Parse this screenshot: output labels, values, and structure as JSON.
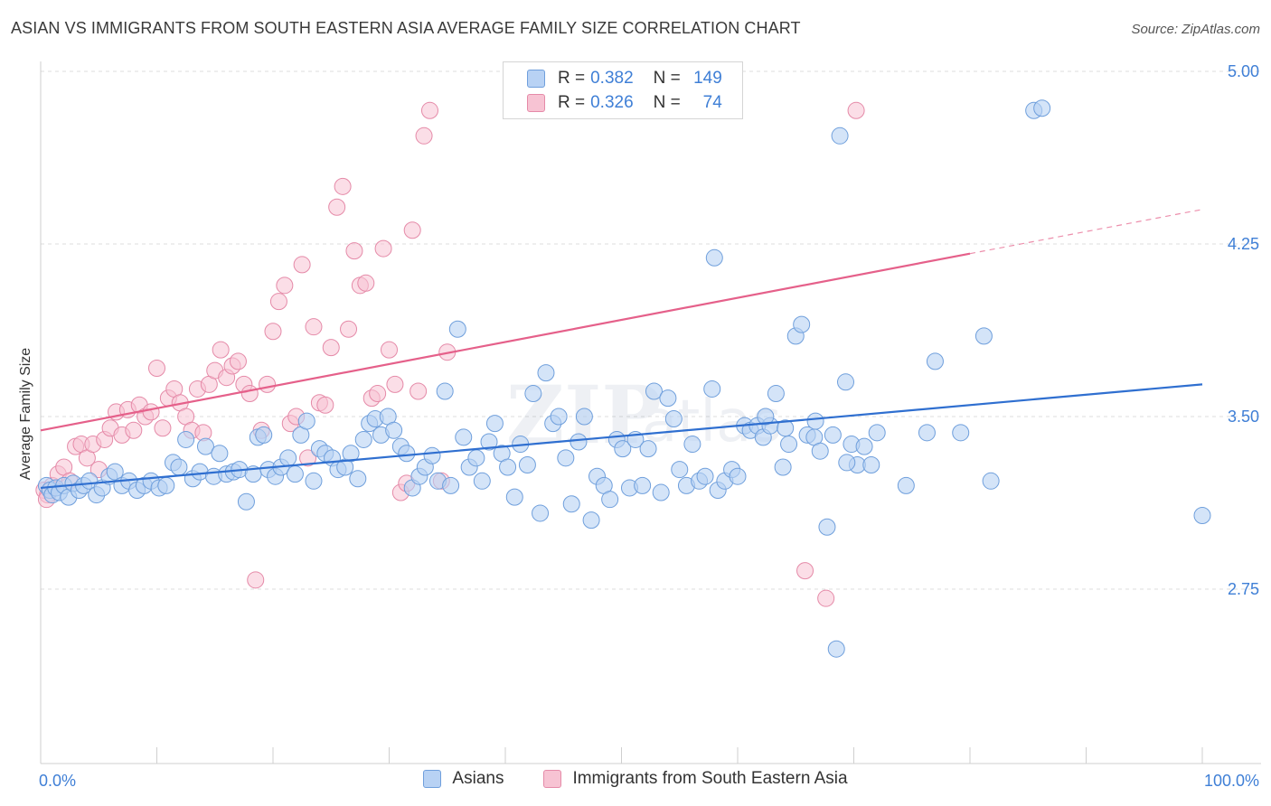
{
  "header": {
    "title": "ASIAN VS IMMIGRANTS FROM SOUTH EASTERN ASIA AVERAGE FAMILY SIZE CORRELATION CHART",
    "source": "Source: ZipAtlas.com"
  },
  "colors": {
    "blue_fill": "#b8d2f4",
    "blue_stroke": "#6f9fdc",
    "blue_line": "#2f6fd0",
    "pink_fill": "#f7c3d3",
    "pink_stroke": "#e58aa8",
    "pink_line": "#e5608a",
    "grid": "#dcdcdc",
    "tick_text": "#3f7fd6"
  },
  "legend": {
    "rows": [
      {
        "r_label": "R =",
        "r_value": "0.382",
        "n_label": "N =",
        "n_value": "149"
      },
      {
        "r_label": "R =",
        "r_value": "0.326",
        "n_label": "N =",
        "n_value": "74"
      }
    ]
  },
  "bottom_legend": [
    "Asians",
    "Immigrants from South Eastern Asia"
  ],
  "chart_data": {
    "type": "scatter",
    "title": "ASIAN VS IMMIGRANTS FROM SOUTH EASTERN ASIA AVERAGE FAMILY SIZE CORRELATION CHART",
    "xlabel": "",
    "ylabel": "Average Family Size",
    "x_tick_labels": [
      "0.0%",
      "100.0%"
    ],
    "y_ticks": [
      2.75,
      3.5,
      4.25,
      5.0
    ],
    "y_tick_labels": [
      "2.75",
      "3.50",
      "4.25",
      "5.00"
    ],
    "xlim": [
      0,
      100
    ],
    "ylim": [
      2.0,
      5.05
    ],
    "grid": true,
    "legend_position": "top-center",
    "series": [
      {
        "name": "Asians",
        "R": 0.382,
        "N": 149,
        "trend": {
          "x": [
            0,
            100
          ],
          "y": [
            3.19,
            3.64
          ]
        },
        "points": [
          [
            0.5,
            3.2
          ],
          [
            0.8,
            3.18
          ],
          [
            1.0,
            3.16
          ],
          [
            1.3,
            3.19
          ],
          [
            1.6,
            3.17
          ],
          [
            2.0,
            3.2
          ],
          [
            2.4,
            3.15
          ],
          [
            2.8,
            3.21
          ],
          [
            3.3,
            3.18
          ],
          [
            3.7,
            3.2
          ],
          [
            4.2,
            3.22
          ],
          [
            4.8,
            3.16
          ],
          [
            5.3,
            3.19
          ],
          [
            5.9,
            3.24
          ],
          [
            6.4,
            3.26
          ],
          [
            7.0,
            3.2
          ],
          [
            7.6,
            3.22
          ],
          [
            8.3,
            3.18
          ],
          [
            8.9,
            3.2
          ],
          [
            9.5,
            3.22
          ],
          [
            10.2,
            3.19
          ],
          [
            10.8,
            3.2
          ],
          [
            11.4,
            3.3
          ],
          [
            11.9,
            3.28
          ],
          [
            12.5,
            3.4
          ],
          [
            13.1,
            3.23
          ],
          [
            13.7,
            3.26
          ],
          [
            14.2,
            3.37
          ],
          [
            14.9,
            3.24
          ],
          [
            15.4,
            3.34
          ],
          [
            16.0,
            3.25
          ],
          [
            16.6,
            3.26
          ],
          [
            17.1,
            3.27
          ],
          [
            17.7,
            3.13
          ],
          [
            18.3,
            3.25
          ],
          [
            18.7,
            3.41
          ],
          [
            19.2,
            3.42
          ],
          [
            19.6,
            3.27
          ],
          [
            20.2,
            3.24
          ],
          [
            20.7,
            3.28
          ],
          [
            21.3,
            3.32
          ],
          [
            21.9,
            3.25
          ],
          [
            22.4,
            3.42
          ],
          [
            22.9,
            3.48
          ],
          [
            23.5,
            3.22
          ],
          [
            24.0,
            3.36
          ],
          [
            24.5,
            3.34
          ],
          [
            25.1,
            3.32
          ],
          [
            25.6,
            3.27
          ],
          [
            26.2,
            3.28
          ],
          [
            26.7,
            3.34
          ],
          [
            27.3,
            3.23
          ],
          [
            27.8,
            3.4
          ],
          [
            28.3,
            3.47
          ],
          [
            28.8,
            3.49
          ],
          [
            29.3,
            3.42
          ],
          [
            29.9,
            3.5
          ],
          [
            30.4,
            3.44
          ],
          [
            31.0,
            3.37
          ],
          [
            31.5,
            3.34
          ],
          [
            32.0,
            3.19
          ],
          [
            32.6,
            3.24
          ],
          [
            33.1,
            3.28
          ],
          [
            33.7,
            3.33
          ],
          [
            34.2,
            3.22
          ],
          [
            34.8,
            3.61
          ],
          [
            35.3,
            3.2
          ],
          [
            35.9,
            3.88
          ],
          [
            36.4,
            3.41
          ],
          [
            36.9,
            3.28
          ],
          [
            37.5,
            3.32
          ],
          [
            38.0,
            3.22
          ],
          [
            38.6,
            3.39
          ],
          [
            39.1,
            3.47
          ],
          [
            39.7,
            3.34
          ],
          [
            40.2,
            3.28
          ],
          [
            40.8,
            3.15
          ],
          [
            41.3,
            3.38
          ],
          [
            41.9,
            3.29
          ],
          [
            42.4,
            3.6
          ],
          [
            43.0,
            3.08
          ],
          [
            43.5,
            3.69
          ],
          [
            44.1,
            3.47
          ],
          [
            44.6,
            3.5
          ],
          [
            45.2,
            3.32
          ],
          [
            45.7,
            3.12
          ],
          [
            46.3,
            3.39
          ],
          [
            46.8,
            3.5
          ],
          [
            47.4,
            3.05
          ],
          [
            47.9,
            3.24
          ],
          [
            48.5,
            3.2
          ],
          [
            49.0,
            3.14
          ],
          [
            49.6,
            3.4
          ],
          [
            50.1,
            3.36
          ],
          [
            50.7,
            3.19
          ],
          [
            51.2,
            3.4
          ],
          [
            51.8,
            3.2
          ],
          [
            52.3,
            3.36
          ],
          [
            52.8,
            3.61
          ],
          [
            53.4,
            3.17
          ],
          [
            54.0,
            3.58
          ],
          [
            54.5,
            3.49
          ],
          [
            55.0,
            3.27
          ],
          [
            55.6,
            3.2
          ],
          [
            56.1,
            3.38
          ],
          [
            56.7,
            3.22
          ],
          [
            57.2,
            3.24
          ],
          [
            57.8,
            3.62
          ],
          [
            58.3,
            3.18
          ],
          [
            58.9,
            3.22
          ],
          [
            59.5,
            3.27
          ],
          [
            60.0,
            3.24
          ],
          [
            60.6,
            3.46
          ],
          [
            61.1,
            3.44
          ],
          [
            61.7,
            3.46
          ],
          [
            62.2,
            3.41
          ],
          [
            62.8,
            3.46
          ],
          [
            63.3,
            3.6
          ],
          [
            63.9,
            3.28
          ],
          [
            64.4,
            3.38
          ],
          [
            65.0,
            3.85
          ],
          [
            65.5,
            3.9
          ],
          [
            66.0,
            3.42
          ],
          [
            66.6,
            3.41
          ],
          [
            67.1,
            3.35
          ],
          [
            67.7,
            3.02
          ],
          [
            68.2,
            3.42
          ],
          [
            68.8,
            4.72
          ],
          [
            69.3,
            3.65
          ],
          [
            69.8,
            3.38
          ],
          [
            70.3,
            3.29
          ],
          [
            70.9,
            3.37
          ],
          [
            71.5,
            3.29
          ],
          [
            72.0,
            3.43
          ],
          [
            74.5,
            3.2
          ],
          [
            76.3,
            3.43
          ],
          [
            77.0,
            3.74
          ],
          [
            79.2,
            3.43
          ],
          [
            81.2,
            3.85
          ],
          [
            81.8,
            3.22
          ],
          [
            85.5,
            4.83
          ],
          [
            86.2,
            4.84
          ],
          [
            100.0,
            3.07
          ],
          [
            58.0,
            4.19
          ],
          [
            66.7,
            3.48
          ],
          [
            69.4,
            3.3
          ],
          [
            62.4,
            3.5
          ],
          [
            64.1,
            3.45
          ],
          [
            68.5,
            2.49
          ]
        ]
      },
      {
        "name": "Immigrants from South Eastern Asia",
        "R": 0.326,
        "N": 74,
        "trend": {
          "x": [
            0,
            100
          ],
          "y": [
            3.44,
            4.4
          ],
          "solid_until_x": 80
        },
        "points": [
          [
            0.3,
            3.18
          ],
          [
            0.6,
            3.16
          ],
          [
            1.0,
            3.2
          ],
          [
            1.5,
            3.25
          ],
          [
            2.0,
            3.28
          ],
          [
            2.5,
            3.22
          ],
          [
            3.0,
            3.37
          ],
          [
            3.5,
            3.38
          ],
          [
            4.0,
            3.32
          ],
          [
            4.5,
            3.38
          ],
          [
            5.0,
            3.27
          ],
          [
            5.5,
            3.4
          ],
          [
            6.0,
            3.45
          ],
          [
            6.5,
            3.52
          ],
          [
            7.0,
            3.42
          ],
          [
            7.5,
            3.53
          ],
          [
            8.0,
            3.44
          ],
          [
            8.5,
            3.55
          ],
          [
            9.0,
            3.5
          ],
          [
            9.5,
            3.52
          ],
          [
            10.0,
            3.71
          ],
          [
            10.5,
            3.45
          ],
          [
            11.0,
            3.58
          ],
          [
            11.5,
            3.62
          ],
          [
            12.0,
            3.56
          ],
          [
            12.5,
            3.5
          ],
          [
            13.0,
            3.44
          ],
          [
            13.5,
            3.62
          ],
          [
            14.0,
            3.43
          ],
          [
            14.5,
            3.64
          ],
          [
            15.0,
            3.7
          ],
          [
            15.5,
            3.79
          ],
          [
            16.0,
            3.67
          ],
          [
            16.5,
            3.72
          ],
          [
            17.0,
            3.74
          ],
          [
            17.5,
            3.64
          ],
          [
            18.0,
            3.6
          ],
          [
            18.5,
            2.79
          ],
          [
            19.0,
            3.44
          ],
          [
            19.5,
            3.64
          ],
          [
            20.0,
            3.87
          ],
          [
            20.5,
            4.0
          ],
          [
            21.0,
            4.07
          ],
          [
            21.5,
            3.47
          ],
          [
            22.0,
            3.5
          ],
          [
            22.5,
            4.16
          ],
          [
            23.0,
            3.32
          ],
          [
            23.5,
            3.89
          ],
          [
            24.0,
            3.56
          ],
          [
            24.5,
            3.55
          ],
          [
            25.0,
            3.8
          ],
          [
            25.5,
            4.41
          ],
          [
            26.0,
            4.5
          ],
          [
            26.5,
            3.88
          ],
          [
            27.0,
            4.22
          ],
          [
            27.5,
            4.07
          ],
          [
            28.0,
            4.08
          ],
          [
            28.5,
            3.58
          ],
          [
            29.0,
            3.6
          ],
          [
            29.5,
            4.23
          ],
          [
            30.0,
            3.79
          ],
          [
            30.5,
            3.64
          ],
          [
            31.0,
            3.17
          ],
          [
            31.5,
            3.21
          ],
          [
            32.0,
            4.31
          ],
          [
            32.5,
            3.61
          ],
          [
            33.0,
            4.72
          ],
          [
            33.5,
            4.83
          ],
          [
            34.5,
            3.22
          ],
          [
            35.0,
            3.78
          ],
          [
            65.8,
            2.83
          ],
          [
            67.6,
            2.71
          ],
          [
            70.2,
            4.83
          ],
          [
            0.5,
            3.14
          ]
        ]
      }
    ]
  }
}
